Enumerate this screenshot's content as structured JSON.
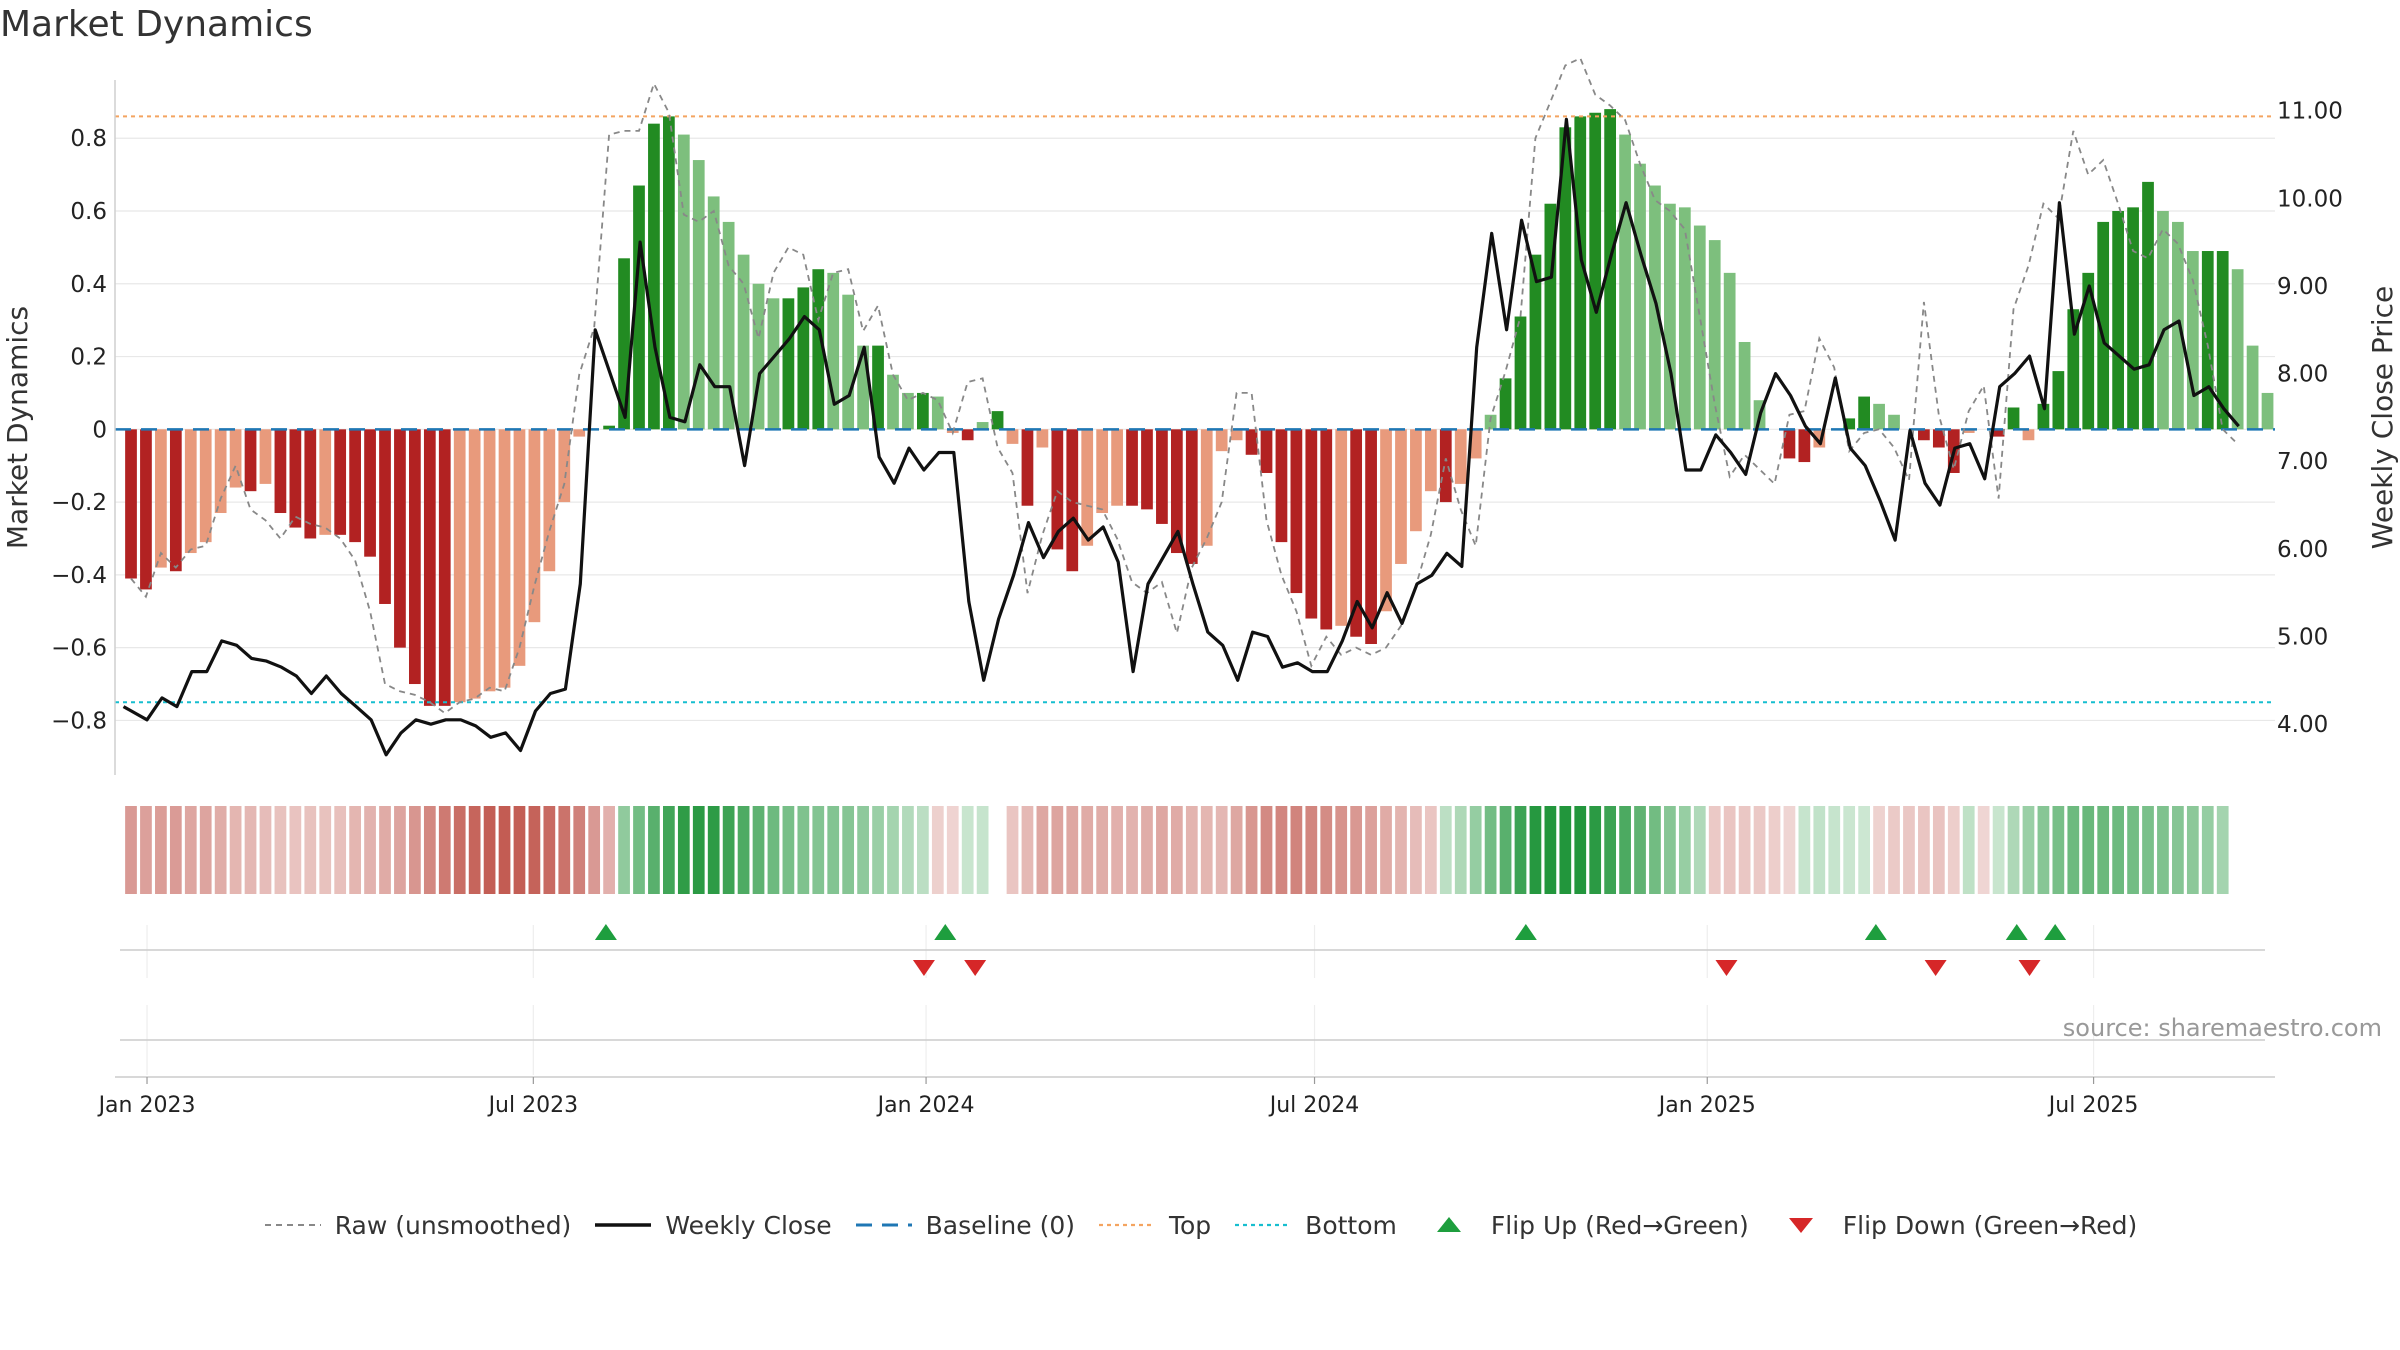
{
  "title": "Market Dynamics",
  "source": "source: sharemaestro.com",
  "colors": {
    "strong_green": "#228b22",
    "light_green": "#7dbf7d",
    "strong_red": "#b22222",
    "light_red": "#e89a7c",
    "raw": "#888888",
    "close": "#111111",
    "baseline": "#1f77b4",
    "top": "#f4a460",
    "bottom": "#17becf",
    "flip_up": "#1e9e3e",
    "flip_down": "#d62728"
  },
  "legend": [
    {
      "key": "raw",
      "label": "Raw (unsmoothed)"
    },
    {
      "key": "close",
      "label": "Weekly Close"
    },
    {
      "key": "baseline",
      "label": "Baseline (0)"
    },
    {
      "key": "top",
      "label": "Top"
    },
    {
      "key": "bottom",
      "label": "Bottom"
    },
    {
      "key": "flip_up",
      "label": "Flip Up (Red→Green)"
    },
    {
      "key": "flip_down",
      "label": "Flip Down (Green→Red)"
    }
  ],
  "chart_data": {
    "type": "bar",
    "title": "Market Dynamics",
    "ylabel": "Market Dynamics",
    "y2label": "Weekly Close Price",
    "ylim": [
      -0.95,
      0.96
    ],
    "y2lim": [
      3.42,
      11.35
    ],
    "yticks": [
      -0.8,
      -0.6,
      -0.4,
      -0.2,
      0,
      0.2,
      0.4,
      0.6,
      0.8
    ],
    "ytick_labels": [
      "−0.8",
      "−0.6",
      "−0.4",
      "−0.2",
      "0",
      "0.2",
      "0.4",
      "0.6",
      "0.8"
    ],
    "y2ticks": [
      4.0,
      5.0,
      6.0,
      7.0,
      8.0,
      9.0,
      10.0,
      11.0
    ],
    "y2tick_labels": [
      "4.00",
      "5.00",
      "6.00",
      "7.00",
      "8.00",
      "9.00",
      "10.00",
      "11.00"
    ],
    "xtick_labels": [
      "Jan 2023",
      "Jul 2023",
      "Jan 2024",
      "Jul 2024",
      "Jan 2025",
      "Jul 2025"
    ],
    "top_level": 0.86,
    "bottom_level": -0.75,
    "baseline": 0,
    "grid": true,
    "legend_position": "bottom",
    "week_start": "2022-12-21",
    "bars": [
      -0.41,
      -0.44,
      -0.38,
      -0.39,
      -0.34,
      -0.31,
      -0.23,
      -0.16,
      -0.17,
      -0.15,
      -0.23,
      -0.27,
      -0.3,
      -0.29,
      -0.29,
      -0.31,
      -0.35,
      -0.48,
      -0.6,
      -0.7,
      -0.76,
      -0.76,
      -0.75,
      -0.74,
      -0.72,
      -0.71,
      -0.65,
      -0.53,
      -0.39,
      -0.2,
      -0.02,
      0.0,
      0.01,
      0.47,
      0.67,
      0.84,
      0.86,
      0.81,
      0.74,
      0.64,
      0.57,
      0.48,
      0.4,
      0.36,
      0.36,
      0.39,
      0.44,
      0.43,
      0.37,
      0.23,
      0.23,
      0.15,
      0.1,
      0.1,
      0.09,
      -0.01,
      -0.03,
      0.02,
      0.05,
      -0.04,
      -0.21,
      -0.05,
      -0.33,
      -0.39,
      -0.32,
      -0.23,
      -0.21,
      -0.21,
      -0.22,
      -0.26,
      -0.34,
      -0.37,
      -0.32,
      -0.06,
      -0.03,
      -0.07,
      -0.12,
      -0.31,
      -0.45,
      -0.52,
      -0.55,
      -0.54,
      -0.57,
      -0.59,
      -0.5,
      -0.37,
      -0.28,
      -0.17,
      -0.2,
      -0.15,
      -0.08,
      0.04,
      0.14,
      0.31,
      0.48,
      0.62,
      0.83,
      0.86,
      0.87,
      0.88,
      0.81,
      0.73,
      0.67,
      0.62,
      0.61,
      0.56,
      0.52,
      0.43,
      0.24,
      0.08,
      0.0,
      -0.08,
      -0.09,
      -0.05,
      0.0,
      0.03,
      0.09,
      0.07,
      0.04,
      0.0,
      -0.03,
      -0.05,
      -0.12,
      -0.01,
      0.0,
      -0.02,
      0.06,
      -0.03,
      0.07,
      0.16,
      0.33,
      0.43,
      0.57,
      0.6,
      0.61,
      0.68,
      0.6,
      0.57,
      0.49,
      0.49,
      0.49,
      0.44,
      0.23,
      0.1
    ],
    "raw": [
      -0.41,
      -0.46,
      -0.34,
      -0.38,
      -0.33,
      -0.32,
      -0.19,
      -0.1,
      -0.22,
      -0.25,
      -0.3,
      -0.24,
      -0.26,
      -0.27,
      -0.3,
      -0.36,
      -0.5,
      -0.7,
      -0.72,
      -0.73,
      -0.75,
      -0.78,
      -0.75,
      -0.74,
      -0.71,
      -0.72,
      -0.6,
      -0.43,
      -0.28,
      -0.15,
      0.15,
      0.28,
      0.81,
      0.82,
      0.82,
      0.95,
      0.87,
      0.59,
      0.57,
      0.6,
      0.45,
      0.4,
      0.25,
      0.43,
      0.5,
      0.48,
      0.3,
      0.43,
      0.44,
      0.27,
      0.34,
      0.15,
      0.08,
      0.1,
      0.08,
      -0.01,
      0.13,
      0.14,
      -0.05,
      -0.12,
      -0.45,
      -0.29,
      -0.17,
      -0.2,
      -0.21,
      -0.22,
      -0.3,
      -0.42,
      -0.45,
      -0.42,
      -0.56,
      -0.38,
      -0.3,
      -0.2,
      0.1,
      0.1,
      -0.25,
      -0.4,
      -0.5,
      -0.65,
      -0.57,
      -0.62,
      -0.6,
      -0.62,
      -0.6,
      -0.54,
      -0.43,
      -0.29,
      -0.08,
      -0.22,
      -0.32,
      0.03,
      0.16,
      0.31,
      0.8,
      0.9,
      1.0,
      1.02,
      0.92,
      0.89,
      0.85,
      0.73,
      0.63,
      0.6,
      0.55,
      0.31,
      0.07,
      -0.13,
      -0.07,
      -0.11,
      -0.15,
      0.04,
      0.05,
      0.25,
      0.17,
      -0.06,
      -0.01,
      0.0,
      -0.05,
      -0.14,
      0.35,
      0.04,
      -0.11,
      0.05,
      0.12,
      -0.19,
      0.33,
      0.45,
      0.62,
      0.58,
      0.82,
      0.7,
      0.74,
      0.62,
      0.49,
      0.47,
      0.55,
      0.51,
      0.41,
      0.23,
      0.0,
      -0.04
    ],
    "close_dates": [
      "2022-12-21",
      "2023-01-01",
      "2023-01-08",
      "2023-01-15",
      "2023-01-22",
      "2023-01-29",
      "2023-02-05",
      "2023-02-12",
      "2023-02-19",
      "2023-02-26",
      "2023-03-05",
      "2023-03-12",
      "2023-03-19",
      "2023-03-26",
      "2023-04-02",
      "2023-04-09",
      "2023-04-16",
      "2023-04-23",
      "2023-04-30",
      "2023-05-07",
      "2023-05-14",
      "2023-05-21",
      "2023-05-28",
      "2023-06-04",
      "2023-06-11",
      "2023-06-18",
      "2023-06-25",
      "2023-07-02",
      "2023-07-09",
      "2023-07-16",
      "2023-07-23",
      "2023-07-30",
      "2023-08-06",
      "2023-08-13",
      "2023-08-20",
      "2023-08-27",
      "2023-09-03",
      "2023-09-10",
      "2023-09-17",
      "2023-09-24",
      "2023-10-01",
      "2023-10-08",
      "2023-10-15",
      "2023-10-22",
      "2023-10-29",
      "2023-11-05",
      "2023-11-12",
      "2023-11-19",
      "2023-11-26",
      "2023-12-03",
      "2023-12-10",
      "2023-12-17",
      "2023-12-24",
      "2023-12-31",
      "2024-01-07",
      "2024-01-14",
      "2024-01-21",
      "2024-01-28",
      "2024-02-04",
      "2024-02-11",
      "2024-02-18",
      "2024-02-25",
      "2024-03-03",
      "2024-03-10",
      "2024-03-17",
      "2024-03-24",
      "2024-03-31",
      "2024-04-07",
      "2024-04-14",
      "2024-04-21",
      "2024-04-28",
      "2024-05-05",
      "2024-05-12",
      "2024-05-19",
      "2024-05-26",
      "2024-06-02",
      "2024-06-09",
      "2024-06-16",
      "2024-06-23",
      "2024-06-30",
      "2024-07-07",
      "2024-07-14",
      "2024-07-21",
      "2024-07-28",
      "2024-08-04",
      "2024-08-11",
      "2024-08-18",
      "2024-08-25",
      "2024-09-01",
      "2024-09-08",
      "2024-09-15",
      "2024-09-22",
      "2024-09-29",
      "2024-10-06",
      "2024-10-13",
      "2024-10-20",
      "2024-10-27",
      "2024-11-03",
      "2024-11-10",
      "2024-11-17",
      "2024-11-24",
      "2024-12-01",
      "2024-12-08",
      "2024-12-15",
      "2024-12-22",
      "2024-12-29",
      "2025-01-05",
      "2025-01-12",
      "2025-01-19",
      "2025-01-26",
      "2025-02-02",
      "2025-02-09",
      "2025-02-16",
      "2025-02-23",
      "2025-03-02",
      "2025-03-09",
      "2025-03-16",
      "2025-03-23",
      "2025-03-30",
      "2025-04-06",
      "2025-04-13",
      "2025-04-20",
      "2025-04-27",
      "2025-05-04",
      "2025-05-11",
      "2025-05-18",
      "2025-05-25",
      "2025-06-01",
      "2025-06-08",
      "2025-06-15",
      "2025-06-22",
      "2025-06-29",
      "2025-07-06",
      "2025-07-13",
      "2025-07-20",
      "2025-07-27",
      "2025-08-03",
      "2025-08-10",
      "2025-08-17",
      "2025-08-24",
      "2025-08-31",
      "2025-09-07",
      "2025-09-14",
      "2025-09-21"
    ],
    "close": [
      4.2,
      4.05,
      4.3,
      4.2,
      4.6,
      4.6,
      4.95,
      4.9,
      4.75,
      4.72,
      4.65,
      4.55,
      4.35,
      4.55,
      4.35,
      4.2,
      4.05,
      3.65,
      3.9,
      4.05,
      4.0,
      4.05,
      4.05,
      3.98,
      3.85,
      3.9,
      3.7,
      4.15,
      4.35,
      4.4,
      5.6,
      8.5,
      8.0,
      7.5,
      9.5,
      8.3,
      7.5,
      7.45,
      8.1,
      7.85,
      7.85,
      6.95,
      8.0,
      8.2,
      8.4,
      8.65,
      8.5,
      7.65,
      7.75,
      8.3,
      7.05,
      6.75,
      7.15,
      6.9,
      7.1,
      7.1,
      5.4,
      4.5,
      5.2,
      5.7,
      6.3,
      5.9,
      6.2,
      6.35,
      6.1,
      6.25,
      5.85,
      4.6,
      5.6,
      5.9,
      6.2,
      5.6,
      5.05,
      4.9,
      4.5,
      5.05,
      5.0,
      4.65,
      4.7,
      4.6,
      4.6,
      4.95,
      5.4,
      5.1,
      5.5,
      5.15,
      5.6,
      5.7,
      5.95,
      5.8,
      8.3,
      9.6,
      8.5,
      9.75,
      9.05,
      9.1,
      10.9,
      9.3,
      8.7,
      9.35,
      9.95,
      9.35,
      8.8,
      8.0,
      6.9,
      6.9,
      7.3,
      7.1,
      6.85,
      7.55,
      8.0,
      7.75,
      7.4,
      7.2,
      7.95,
      7.15,
      6.95,
      6.55,
      6.1,
      7.35,
      6.75,
      6.5,
      7.15,
      7.2,
      6.8,
      7.85,
      8.0,
      8.2,
      7.6,
      9.95,
      8.45,
      9.0,
      8.35,
      8.2,
      8.05,
      8.1,
      8.5,
      8.6,
      7.75,
      7.85,
      7.6,
      7.4
    ],
    "strip": [
      -0.4,
      -0.36,
      -0.38,
      -0.39,
      -0.33,
      -0.34,
      -0.28,
      -0.23,
      -0.22,
      -0.19,
      -0.16,
      -0.15,
      -0.16,
      -0.16,
      -0.17,
      -0.23,
      -0.25,
      -0.3,
      -0.34,
      -0.42,
      -0.5,
      -0.59,
      -0.66,
      -0.72,
      -0.76,
      -0.77,
      -0.76,
      -0.73,
      -0.68,
      -0.63,
      -0.55,
      -0.4,
      -0.26,
      0.32,
      0.45,
      0.58,
      0.7,
      0.78,
      0.8,
      0.79,
      0.72,
      0.63,
      0.56,
      0.48,
      0.43,
      0.4,
      0.38,
      0.38,
      0.37,
      0.33,
      0.27,
      0.22,
      0.16,
      0.12,
      -0.07,
      -0.05,
      0.05,
      0.06,
      null,
      -0.14,
      -0.21,
      -0.32,
      -0.34,
      -0.32,
      -0.3,
      -0.28,
      -0.26,
      -0.25,
      -0.28,
      -0.32,
      -0.29,
      -0.24,
      -0.23,
      -0.22,
      -0.32,
      -0.42,
      -0.49,
      -0.52,
      -0.53,
      -0.52,
      -0.48,
      -0.44,
      -0.41,
      -0.36,
      -0.3,
      -0.24,
      -0.19,
      -0.14,
      0.1,
      0.18,
      0.3,
      0.45,
      0.58,
      0.72,
      0.82,
      0.86,
      0.87,
      0.86,
      0.8,
      0.72,
      0.64,
      0.55,
      0.46,
      0.36,
      0.28,
      0.17,
      -0.12,
      -0.14,
      -0.13,
      -0.12,
      -0.08,
      -0.04,
      0.06,
      0.08,
      0.06,
      0.04,
      0.03,
      -0.06,
      -0.1,
      -0.13,
      -0.14,
      -0.15,
      -0.08,
      0.09,
      -0.04,
      0.05,
      0.18,
      0.27,
      0.36,
      0.43,
      0.48,
      0.5,
      0.49,
      0.48,
      0.45,
      0.42,
      0.4,
      0.37,
      0.34,
      0.3,
      0.22
    ],
    "flip_up_dates": [
      "2023-08-04",
      "2024-01-10",
      "2024-10-08",
      "2025-03-21",
      "2025-05-26",
      "2025-06-13"
    ],
    "flip_down_dates": [
      "2023-12-31",
      "2024-01-24",
      "2025-01-10",
      "2025-04-18",
      "2025-06-01"
    ],
    "x_range": [
      "2022-12-17",
      "2025-09-24"
    ]
  }
}
